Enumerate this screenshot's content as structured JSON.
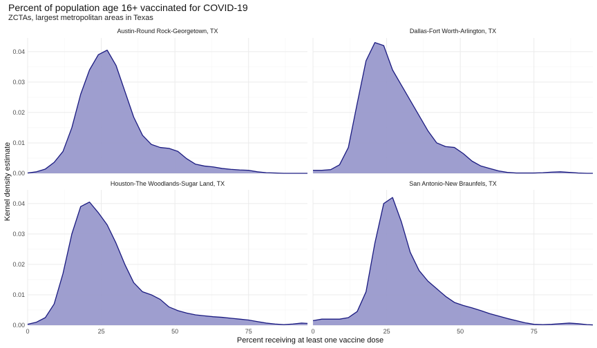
{
  "title": "Percent of population age 16+ vaccinated for COVID-19",
  "subtitle": "ZCTAs, largest metropolitan areas in Texas",
  "colors": {
    "fill": "#9999cc",
    "line": "#1a1a80",
    "grid_major": "#ebebeb",
    "grid_minor": "#f5f5f5"
  },
  "chart_data": {
    "type": "area",
    "subtype": "density",
    "title": "Percent of population age 16+ vaccinated for COVID-19",
    "subtitle": "ZCTAs, largest metropolitan areas in Texas",
    "xlabel": "Percent receiving at least one vaccine dose",
    "ylabel": "Kernel density estimate",
    "xlim": [
      0,
      95
    ],
    "ylim": [
      0,
      0.0445
    ],
    "x_ticks": [
      0,
      25,
      50,
      75
    ],
    "y_ticks": [
      0.0,
      0.01,
      0.02,
      0.03,
      0.04
    ],
    "y_tick_labels": [
      "0.00",
      "0.01",
      "0.02",
      "0.03",
      "0.04"
    ],
    "grid": true,
    "legend": "none",
    "panels": [
      {
        "name": "Austin-Round Rock-Georgetown, TX",
        "x": [
          0,
          3,
          6,
          9,
          12,
          15,
          18,
          21,
          24,
          27,
          30,
          33,
          36,
          39,
          42,
          45,
          48,
          51,
          54,
          57,
          60,
          63,
          66,
          69,
          72,
          75,
          78,
          81,
          84,
          87,
          90,
          93,
          95
        ],
        "y": [
          0.0001,
          0.0005,
          0.0014,
          0.0036,
          0.0072,
          0.015,
          0.026,
          0.034,
          0.039,
          0.0405,
          0.0355,
          0.027,
          0.0185,
          0.0125,
          0.0095,
          0.0085,
          0.0082,
          0.0072,
          0.0048,
          0.003,
          0.0024,
          0.0021,
          0.0016,
          0.0013,
          0.0011,
          0.001,
          0.0005,
          0.0002,
          0.0001,
          0.0,
          0.0,
          0.0,
          0.0
        ]
      },
      {
        "name": "Dallas-Fort Worth-Arlington, TX",
        "x": [
          0,
          3,
          6,
          9,
          12,
          15,
          18,
          21,
          24,
          27,
          30,
          33,
          36,
          39,
          42,
          45,
          48,
          51,
          54,
          57,
          60,
          63,
          66,
          69,
          72,
          75,
          78,
          81,
          84,
          87,
          90,
          93,
          95
        ],
        "y": [
          0.001,
          0.001,
          0.0012,
          0.0028,
          0.0085,
          0.023,
          0.037,
          0.043,
          0.042,
          0.034,
          0.029,
          0.024,
          0.019,
          0.014,
          0.01,
          0.0088,
          0.0085,
          0.0065,
          0.004,
          0.0024,
          0.0016,
          0.0008,
          0.0003,
          0.0001,
          0.0001,
          0.0001,
          0.0002,
          0.0004,
          0.0005,
          0.0003,
          0.0001,
          0.0,
          0.0
        ]
      },
      {
        "name": "Houston-The Woodlands-Sugar Land, TX",
        "x": [
          0,
          3,
          6,
          9,
          12,
          15,
          18,
          21,
          24,
          27,
          30,
          33,
          36,
          39,
          42,
          45,
          48,
          51,
          54,
          57,
          60,
          63,
          66,
          69,
          72,
          75,
          78,
          81,
          84,
          87,
          90,
          93,
          95
        ],
        "y": [
          0.0003,
          0.001,
          0.0025,
          0.007,
          0.017,
          0.03,
          0.039,
          0.0405,
          0.037,
          0.033,
          0.027,
          0.02,
          0.014,
          0.011,
          0.01,
          0.0085,
          0.006,
          0.0048,
          0.004,
          0.0034,
          0.0031,
          0.0028,
          0.0026,
          0.0023,
          0.002,
          0.0017,
          0.0012,
          0.0007,
          0.0004,
          0.0002,
          0.0004,
          0.0007,
          0.0006
        ]
      },
      {
        "name": "San Antonio-New Braunfels, TX",
        "x": [
          0,
          3,
          6,
          9,
          12,
          15,
          18,
          21,
          24,
          27,
          30,
          33,
          36,
          39,
          42,
          45,
          48,
          51,
          54,
          57,
          60,
          63,
          66,
          69,
          72,
          75,
          78,
          81,
          84,
          87,
          90,
          93,
          95
        ],
        "y": [
          0.0015,
          0.002,
          0.002,
          0.002,
          0.0025,
          0.0045,
          0.011,
          0.027,
          0.04,
          0.042,
          0.034,
          0.024,
          0.018,
          0.0145,
          0.012,
          0.0095,
          0.0075,
          0.0065,
          0.0057,
          0.0048,
          0.0038,
          0.003,
          0.0022,
          0.0015,
          0.0008,
          0.0003,
          0.0002,
          0.0003,
          0.0005,
          0.0007,
          0.0005,
          0.0002,
          0.0001
        ]
      }
    ]
  }
}
